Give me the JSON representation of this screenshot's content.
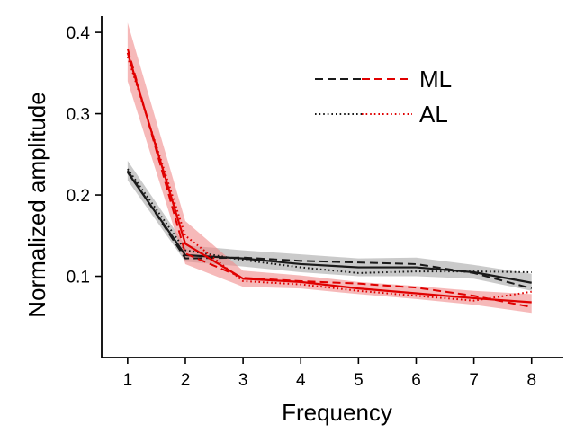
{
  "chart_data": {
    "type": "line",
    "xlabel": "Frequency",
    "ylabel": "Normalized amplitude",
    "xlim": [
      0.55,
      8.55
    ],
    "ylim": [
      0.0,
      0.42
    ],
    "xticks": [
      1,
      2,
      3,
      4,
      5,
      6,
      7,
      8
    ],
    "xtick_labels": [
      "1",
      "2",
      "3",
      "4",
      "5",
      "6",
      "7",
      "8"
    ],
    "yticks": [
      0.1,
      0.2,
      0.3,
      0.4
    ],
    "ytick_labels": [
      "0.1",
      "0.2",
      "0.3",
      "0.4"
    ],
    "grid": false,
    "legend_position": "top-right",
    "legend": [
      {
        "label": "ML",
        "style": "dashed"
      },
      {
        "label": "AL",
        "style": "dotted"
      }
    ],
    "colors": {
      "black": "#1a1a1a",
      "red": "#e00000",
      "black_band": "#9e9e9e",
      "red_band": "#f08a8a"
    },
    "x": [
      1,
      2,
      3,
      4,
      5,
      6,
      7,
      8
    ],
    "bands": [
      {
        "color": "black",
        "lower": [
          0.218,
          0.118,
          0.112,
          0.105,
          0.1,
          0.1,
          0.097,
          0.082
        ],
        "upper": [
          0.242,
          0.138,
          0.132,
          0.127,
          0.122,
          0.123,
          0.114,
          0.103
        ]
      },
      {
        "color": "red",
        "lower": [
          0.34,
          0.115,
          0.087,
          0.085,
          0.078,
          0.072,
          0.065,
          0.055
        ],
        "upper": [
          0.412,
          0.168,
          0.107,
          0.101,
          0.093,
          0.088,
          0.082,
          0.078
        ]
      }
    ],
    "series": [
      {
        "color": "black",
        "style": "solid",
        "values": [
          0.228,
          0.126,
          0.122,
          0.115,
          0.111,
          0.111,
          0.105,
          0.092
        ]
      },
      {
        "color": "black",
        "style": "dashed",
        "values": [
          0.23,
          0.122,
          0.123,
          0.119,
          0.117,
          0.115,
          0.104,
          0.085
        ]
      },
      {
        "color": "black",
        "style": "dotted",
        "values": [
          0.232,
          0.132,
          0.12,
          0.111,
          0.104,
          0.106,
          0.106,
          0.105
        ]
      },
      {
        "color": "red",
        "style": "solid",
        "values": [
          0.375,
          0.14,
          0.097,
          0.093,
          0.085,
          0.079,
          0.073,
          0.068
        ]
      },
      {
        "color": "red",
        "style": "dashed",
        "values": [
          0.38,
          0.128,
          0.098,
          0.094,
          0.091,
          0.086,
          0.076,
          0.062
        ]
      },
      {
        "color": "red",
        "style": "dotted",
        "values": [
          0.37,
          0.15,
          0.094,
          0.09,
          0.082,
          0.076,
          0.07,
          0.081
        ]
      }
    ]
  }
}
